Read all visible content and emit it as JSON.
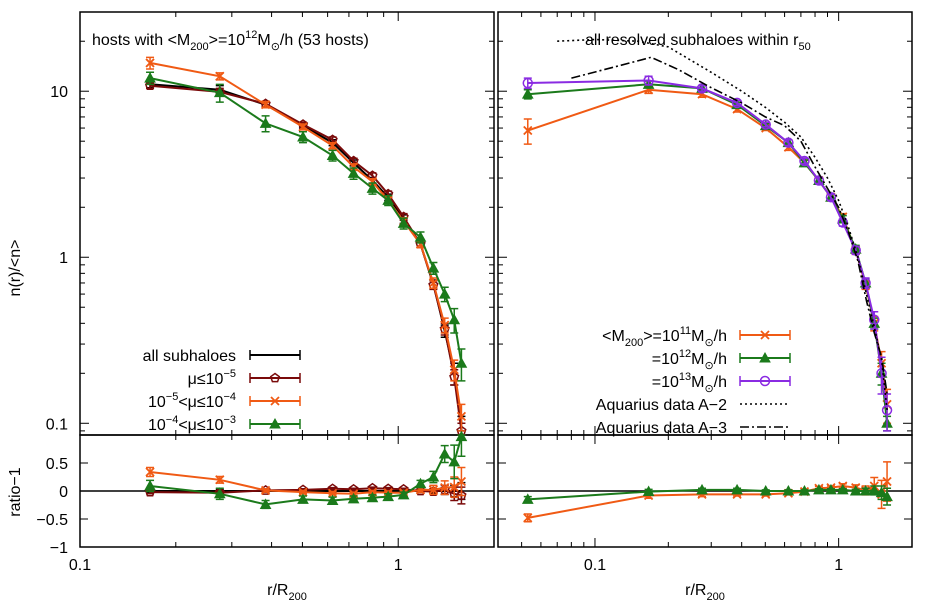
{
  "chart_data": [
    {
      "type": "line",
      "panel": "left",
      "title": "hosts with <M200>=10^12 MO/h (53 hosts)",
      "title_parts": {
        "pre": "hosts with <M",
        "sub1": "200",
        "mid": ">=10",
        "sup": "12",
        "m": "M",
        "sun": "⊙",
        "post": "/h (53 hosts)"
      },
      "xlabel": {
        "base": "r/R",
        "sub": "200"
      },
      "ylabel": "n(r)/<n>",
      "ratio_ylabel": "ratio−1",
      "xscale": "log",
      "yscale": "log",
      "xlim": [
        0.1,
        2.0
      ],
      "ylim": [
        0.085,
        30
      ],
      "ratio_ylim": [
        -1,
        1
      ],
      "xticks": [
        {
          "v": 0.1,
          "label": "0.1"
        },
        {
          "v": 1,
          "label": "1"
        }
      ],
      "yticks": [
        {
          "v": 0.1,
          "label": "0.1"
        },
        {
          "v": 1,
          "label": "1"
        },
        {
          "v": 10,
          "label": "10"
        }
      ],
      "ratio_yticks": [
        {
          "v": 0.5,
          "label": "0.5"
        },
        {
          "v": 0,
          "label": "0"
        },
        {
          "v": -0.5,
          "label": "−0.5"
        },
        {
          "v": -1,
          "label": "−1"
        }
      ],
      "legend_position": "bottom-left",
      "series": [
        {
          "name": "all subhaloes",
          "color": "#000000",
          "marker": "none",
          "x": [
            0.166,
            0.275,
            0.383,
            0.502,
            0.622,
            0.724,
            0.83,
            0.93,
            1.04,
            1.175,
            1.29,
            1.4,
            1.5,
            1.58
          ],
          "y": [
            11.0,
            10.2,
            8.3,
            6.2,
            4.9,
            3.7,
            2.9,
            2.3,
            1.7,
            1.2,
            0.69,
            0.36,
            0.2,
            0.1
          ],
          "err": [
            0.5,
            0.6,
            0.3,
            0.2,
            0.2,
            0.15,
            0.12,
            0.1,
            0.1,
            0.06,
            0.04,
            0.03,
            0.03,
            0.01
          ],
          "ratio": [
            0,
            0,
            0,
            0,
            0,
            0,
            0,
            0,
            0,
            0,
            0,
            0,
            0,
            0
          ],
          "ratio_err": [
            0.03,
            0.03,
            0.02,
            0.02,
            0.02,
            0.02,
            0.02,
            0.02,
            0.02,
            0.03,
            0.04,
            0.06,
            0.1,
            0.15
          ]
        },
        {
          "name": "μ≤10^-5",
          "color": "#7a0a0a",
          "marker": "pentagon",
          "x": [
            0.166,
            0.275,
            0.383,
            0.502,
            0.622,
            0.724,
            0.83,
            0.93,
            1.04,
            1.175,
            1.29,
            1.4,
            1.5,
            1.58
          ],
          "y": [
            10.8,
            9.9,
            8.4,
            6.3,
            5.1,
            3.8,
            3.1,
            2.4,
            1.75,
            1.2,
            0.68,
            0.37,
            0.19,
            0.09
          ],
          "err": [
            0.4,
            0.5,
            0.3,
            0.2,
            0.2,
            0.15,
            0.12,
            0.1,
            0.08,
            0.06,
            0.04,
            0.03,
            0.02,
            0.01
          ],
          "ratio": [
            -0.02,
            -0.03,
            0.01,
            0.02,
            0.04,
            0.03,
            0.05,
            0.04,
            0.03,
            0.0,
            -0.01,
            0.02,
            -0.05,
            -0.08
          ],
          "ratio_err": [
            0.03,
            0.03,
            0.02,
            0.02,
            0.02,
            0.02,
            0.02,
            0.02,
            0.02,
            0.03,
            0.05,
            0.08,
            0.12,
            0.15
          ]
        },
        {
          "name": "10^-5<μ≤10^-4",
          "color": "#f05a14",
          "marker": "cross",
          "x": [
            0.166,
            0.275,
            0.383,
            0.502,
            0.622,
            0.724,
            0.83,
            0.93,
            1.04,
            1.175,
            1.29,
            1.4,
            1.5,
            1.58
          ],
          "y": [
            14.8,
            12.3,
            8.3,
            6.1,
            4.7,
            3.5,
            2.85,
            2.2,
            1.65,
            1.2,
            0.7,
            0.39,
            0.21,
            0.11
          ],
          "err": [
            1.2,
            0.6,
            0.35,
            0.25,
            0.2,
            0.15,
            0.12,
            0.1,
            0.08,
            0.06,
            0.05,
            0.04,
            0.03,
            0.02
          ],
          "ratio": [
            0.34,
            0.2,
            0.01,
            -0.02,
            -0.04,
            -0.05,
            -0.02,
            -0.03,
            -0.03,
            0.02,
            0.02,
            0.06,
            0.07,
            0.17
          ],
          "ratio_err": [
            0.08,
            0.06,
            0.03,
            0.03,
            0.03,
            0.03,
            0.03,
            0.03,
            0.03,
            0.05,
            0.08,
            0.12,
            0.18,
            0.25
          ]
        },
        {
          "name": "10^-4<μ≤10^-3",
          "color": "#1b7a1b",
          "marker": "triangle",
          "x": [
            0.166,
            0.275,
            0.383,
            0.502,
            0.622,
            0.724,
            0.83,
            0.93,
            1.04,
            1.175,
            1.29,
            1.4,
            1.5,
            1.58
          ],
          "y": [
            12.0,
            9.8,
            6.4,
            5.3,
            4.1,
            3.2,
            2.6,
            2.2,
            1.6,
            1.32,
            0.86,
            0.6,
            0.42,
            0.23
          ],
          "err": [
            1.0,
            1.2,
            0.7,
            0.4,
            0.3,
            0.25,
            0.2,
            0.15,
            0.12,
            0.1,
            0.07,
            0.06,
            0.07,
            0.05
          ],
          "ratio": [
            0.09,
            -0.05,
            -0.24,
            -0.15,
            -0.17,
            -0.14,
            -0.12,
            -0.1,
            -0.07,
            0.13,
            0.25,
            0.66,
            0.52,
            0.97
          ],
          "ratio_err": [
            0.1,
            0.1,
            0.07,
            0.06,
            0.06,
            0.05,
            0.05,
            0.05,
            0.05,
            0.06,
            0.1,
            0.15,
            0.3,
            0.35
          ]
        }
      ]
    },
    {
      "type": "line",
      "panel": "right",
      "title": "all resolved subhaloes within r50",
      "title_parts": {
        "pre": "all resolved subhaloes within r",
        "sub": "50"
      },
      "xlabel": {
        "base": "r/R",
        "sub": "200"
      },
      "xscale": "log",
      "yscale": "log",
      "xlim": [
        0.04,
        2.0
      ],
      "ylim": [
        0.085,
        30
      ],
      "ratio_ylim": [
        -1,
        1
      ],
      "xticks": [
        {
          "v": 0.1,
          "label": "0.1"
        },
        {
          "v": 1,
          "label": "1"
        }
      ],
      "legend_position": "bottom-right",
      "series": [
        {
          "name": "<M200>=10^11 MO/h",
          "label_parts": {
            "pre": "<M",
            "sub": "200",
            "mid": ">=10",
            "sup": "11",
            "post": "/h"
          },
          "color": "#f05a14",
          "marker": "cross",
          "x": [
            0.053,
            0.166,
            0.275,
            0.383,
            0.502,
            0.622,
            0.724,
            0.83,
            0.93,
            1.04,
            1.175,
            1.29,
            1.4,
            1.5,
            1.58
          ],
          "y": [
            5.8,
            10.2,
            9.6,
            7.8,
            6.0,
            4.6,
            3.7,
            2.9,
            2.3,
            1.75,
            1.1,
            0.68,
            0.4,
            0.23,
            0.13
          ],
          "err": [
            1.0,
            0.5,
            0.4,
            0.3,
            0.2,
            0.2,
            0.15,
            0.12,
            0.1,
            0.08,
            0.06,
            0.04,
            0.04,
            0.04,
            0.03
          ],
          "ratio": [
            -0.48,
            -0.08,
            -0.06,
            -0.06,
            -0.06,
            -0.04,
            -0.01,
            0.05,
            0.06,
            0.09,
            0.06,
            0.01,
            0.09,
            -0.06,
            0.17
          ],
          "ratio_err": [
            0.07,
            0.05,
            0.04,
            0.03,
            0.03,
            0.03,
            0.03,
            0.03,
            0.03,
            0.04,
            0.05,
            0.08,
            0.15,
            0.25,
            0.35
          ]
        },
        {
          "name": "=10^12 MO/h",
          "label_parts": {
            "pre": "=10",
            "sup": "12",
            "post": "/h"
          },
          "color": "#1b7a1b",
          "marker": "triangle",
          "x": [
            0.053,
            0.166,
            0.275,
            0.383,
            0.502,
            0.622,
            0.724,
            0.83,
            0.93,
            1.04,
            1.175,
            1.29,
            1.4,
            1.5,
            1.58
          ],
          "y": [
            9.6,
            11.0,
            10.4,
            8.3,
            6.2,
            4.9,
            3.7,
            2.9,
            2.3,
            1.7,
            1.12,
            0.7,
            0.4,
            0.2,
            0.1
          ],
          "err": [
            0.6,
            0.5,
            0.4,
            0.3,
            0.2,
            0.2,
            0.15,
            0.12,
            0.1,
            0.08,
            0.06,
            0.04,
            0.03,
            0.03,
            0.01
          ],
          "ratio": [
            -0.15,
            -0.01,
            0.02,
            0.02,
            0.0,
            0.0,
            0.0,
            0.02,
            0.02,
            0.02,
            0.0,
            0.0,
            0.01,
            -0.03,
            -0.1
          ],
          "ratio_err": [
            0.05,
            0.04,
            0.03,
            0.03,
            0.02,
            0.02,
            0.02,
            0.02,
            0.02,
            0.02,
            0.03,
            0.05,
            0.08,
            0.12,
            0.15
          ]
        },
        {
          "name": "=10^13 MO/h",
          "label_parts": {
            "pre": "=10",
            "sup": "13",
            "post": "/h"
          },
          "color": "#8a2be2",
          "marker": "circle",
          "x": [
            0.053,
            0.166,
            0.275,
            0.383,
            0.502,
            0.622,
            0.724,
            0.83,
            0.93,
            1.04,
            1.175,
            1.29,
            1.4,
            1.5,
            1.58
          ],
          "y": [
            11.2,
            11.6,
            10.4,
            8.5,
            6.3,
            4.9,
            3.8,
            2.9,
            2.3,
            1.62,
            1.1,
            0.7,
            0.42,
            0.2,
            0.12
          ],
          "err": [
            0.8,
            0.7,
            0.4,
            0.3,
            0.2,
            0.2,
            0.15,
            0.12,
            0.1,
            0.08,
            0.06,
            0.05,
            0.05,
            0.05,
            0.03
          ]
        },
        {
          "name": "Aquarius data A−2",
          "color": "#000000",
          "style": "dotted",
          "x": [
            0.07,
            0.1,
            0.15,
            0.2,
            0.3,
            0.4,
            0.5,
            0.6,
            0.7,
            0.8,
            0.9,
            1.0,
            1.1,
            1.2,
            1.3,
            1.4,
            1.5,
            1.58
          ],
          "y": [
            20,
            20.5,
            20,
            18.5,
            13,
            10,
            8,
            6.5,
            5.3,
            4,
            3,
            2.2,
            1.5,
            1.0,
            0.6,
            0.38,
            0.24,
            0.12
          ]
        },
        {
          "name": "Aquarius data A−3",
          "color": "#000000",
          "style": "dashdot",
          "x": [
            0.08,
            0.12,
            0.17,
            0.22,
            0.3,
            0.4,
            0.5,
            0.6,
            0.7,
            0.8,
            0.9,
            1.0,
            1.1,
            1.2,
            1.3,
            1.4,
            1.5,
            1.58
          ],
          "y": [
            12,
            14,
            16,
            13.5,
            10.5,
            8.5,
            7,
            6.2,
            5,
            3.5,
            2.6,
            2.0,
            1.4,
            0.95,
            0.55,
            0.35,
            0.25,
            0.15
          ]
        }
      ]
    }
  ]
}
